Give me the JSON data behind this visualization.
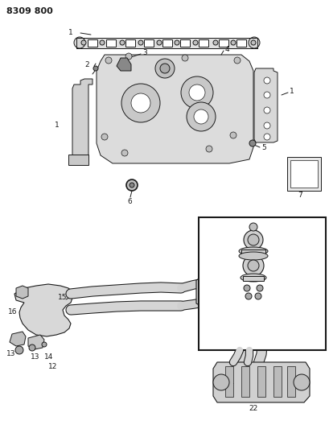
{
  "title": "8309 800",
  "bg_color": "#ffffff",
  "line_color": "#1a1a1a",
  "fill_light": "#e8e8e8",
  "fill_mid": "#d0d0d0",
  "fill_dark": "#b0b0b0",
  "title_fontsize": 8,
  "label_fontsize": 6.5,
  "fig_width": 4.1,
  "fig_height": 5.33,
  "dpi": 100
}
